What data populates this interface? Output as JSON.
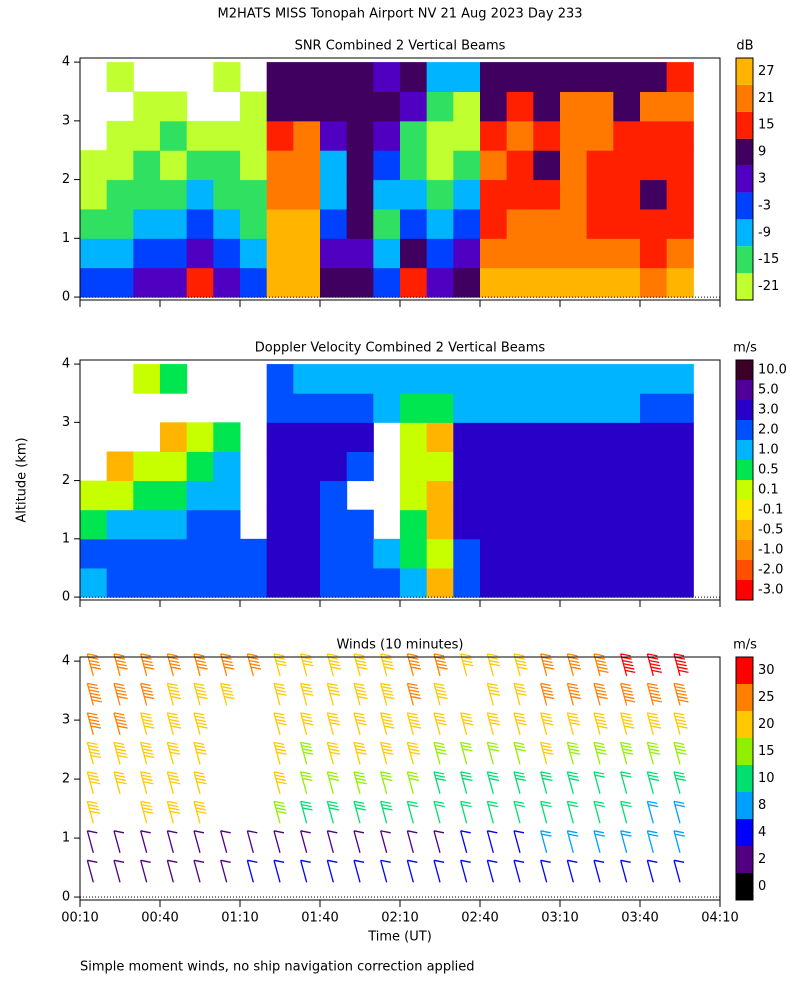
{
  "title": "M2HATS MISS Tonopah Airport NV  21 Aug 2023 Day 233",
  "ylabel": "Altitude (km)",
  "xlabel": "Time (UT)",
  "footnote": "Simple moment winds, no ship navigation correction applied",
  "chart_data": [
    {
      "type": "heatmap",
      "title": "SNR Combined 2 Vertical Beams",
      "unit": "dB",
      "x": [
        15,
        25,
        35,
        45,
        55,
        65,
        75,
        85,
        95,
        105,
        115,
        125,
        135,
        145,
        155,
        165,
        175,
        185,
        195,
        205,
        215,
        225,
        235
      ],
      "y": [
        0.25,
        0.75,
        1.25,
        1.75,
        2.25,
        2.75,
        3.25,
        3.75
      ],
      "values": [
        [
          -3,
          -9,
          -15,
          -21,
          -21,
          null,
          null,
          null
        ],
        [
          -3,
          -9,
          -15,
          -15,
          -21,
          -21,
          null,
          -21
        ],
        [
          3,
          -3,
          -9,
          -15,
          -15,
          -21,
          -21,
          null
        ],
        [
          3,
          -3,
          -9,
          -15,
          -21,
          -15,
          -21,
          null
        ],
        [
          15,
          3,
          -3,
          -9,
          -15,
          -21,
          null,
          null
        ],
        [
          3,
          -3,
          -9,
          -15,
          -15,
          -21,
          null,
          -21
        ],
        [
          -3,
          -9,
          -15,
          -15,
          -21,
          -21,
          -21,
          null
        ],
        [
          27,
          27,
          27,
          21,
          21,
          15,
          9,
          9
        ],
        [
          27,
          27,
          27,
          21,
          21,
          21,
          9,
          9
        ],
        [
          9,
          3,
          -3,
          -9,
          -9,
          3,
          9,
          9
        ],
        [
          9,
          3,
          9,
          9,
          9,
          9,
          9,
          9
        ],
        [
          -3,
          -9,
          -15,
          -9,
          -3,
          3,
          9,
          3
        ],
        [
          15,
          9,
          -3,
          -9,
          -15,
          -15,
          3,
          9
        ],
        [
          3,
          -3,
          -9,
          -15,
          -21,
          -21,
          -15,
          -9
        ],
        [
          9,
          3,
          -3,
          -9,
          -15,
          -21,
          -21,
          -9
        ],
        [
          27,
          21,
          15,
          15,
          21,
          15,
          9,
          9
        ],
        [
          27,
          21,
          21,
          15,
          15,
          21,
          15,
          9
        ],
        [
          27,
          21,
          21,
          15,
          9,
          15,
          9,
          9
        ],
        [
          27,
          21,
          21,
          21,
          21,
          21,
          21,
          9
        ],
        [
          27,
          21,
          15,
          15,
          15,
          21,
          21,
          9
        ],
        [
          27,
          21,
          15,
          15,
          15,
          15,
          9,
          9
        ],
        [
          21,
          15,
          15,
          9,
          15,
          15,
          21,
          9
        ],
        [
          27,
          21,
          15,
          15,
          15,
          15,
          21,
          15
        ]
      ],
      "xlim": [
        10,
        250
      ],
      "xticks": [
        10,
        40,
        70,
        100,
        130,
        160,
        190,
        220,
        250
      ],
      "ylim": [
        -0.05,
        4.07
      ],
      "yticks": [
        0,
        1,
        2,
        3,
        4
      ],
      "colorbar": {
        "ticks": [
          -21,
          -15,
          -9,
          -3,
          3,
          9,
          15,
          21,
          27
        ],
        "colors": [
          "#c0ff30",
          "#30e060",
          "#00b4ff",
          "#0040ff",
          "#5000c0",
          "#400060",
          "#ff2000",
          "#ff7800",
          "#ffb400"
        ]
      }
    },
    {
      "type": "heatmap",
      "title": "Doppler Velocity Combined 2 Vertical Beams",
      "unit": "m/s",
      "x": [
        15,
        25,
        35,
        45,
        55,
        65,
        75,
        85,
        95,
        105,
        115,
        125,
        135,
        145,
        155,
        165,
        175,
        185,
        195,
        205,
        215,
        225,
        235
      ],
      "y": [
        0.25,
        0.75,
        1.25,
        1.75,
        2.25,
        2.75,
        3.25,
        3.75
      ],
      "values": [
        [
          1.5,
          2.5,
          0.7,
          0.3,
          null,
          null,
          null,
          null
        ],
        [
          2.5,
          2.5,
          1.5,
          0.3,
          -0.3,
          null,
          null,
          null
        ],
        [
          2.5,
          2.5,
          1.5,
          0.7,
          0.3,
          null,
          null,
          0.3
        ],
        [
          2.5,
          2.5,
          1.5,
          0.7,
          0.3,
          -0.3,
          null,
          0.7
        ],
        [
          2.5,
          2.5,
          2.5,
          1.5,
          0.7,
          0.3,
          null,
          null
        ],
        [
          2.5,
          2.5,
          2.5,
          1.5,
          1.5,
          0.7,
          null,
          null
        ],
        [
          2.5,
          2.5,
          null,
          null,
          null,
          null,
          null,
          null
        ],
        [
          4,
          4,
          4,
          4,
          4,
          4,
          2.5,
          2.5
        ],
        [
          4,
          4,
          4,
          4,
          4,
          4,
          2.5,
          1.5
        ],
        [
          2.5,
          2.5,
          2.5,
          2.5,
          4,
          4,
          2.5,
          1.5
        ],
        [
          2.5,
          2.5,
          2.5,
          null,
          2.5,
          4,
          2.5,
          1.5
        ],
        [
          2.5,
          1.5,
          null,
          null,
          null,
          null,
          1.5,
          1.5
        ],
        [
          1.5,
          0.7,
          0.7,
          0.3,
          0.3,
          0.3,
          0.7,
          1.5
        ],
        [
          -0.3,
          0.3,
          -0.3,
          -0.3,
          0.3,
          -0.3,
          0.7,
          1.5
        ],
        [
          2.5,
          2.5,
          4,
          4,
          4,
          4,
          1.5,
          1.5
        ],
        [
          4,
          4,
          4,
          4,
          4,
          4,
          1.5,
          1.5
        ],
        [
          4,
          4,
          4,
          4,
          4,
          4,
          1.5,
          1.5
        ],
        [
          4,
          4,
          4,
          4,
          4,
          4,
          1.5,
          1.5
        ],
        [
          4,
          4,
          4,
          4,
          4,
          4,
          1.5,
          1.5
        ],
        [
          4,
          4,
          4,
          4,
          4,
          4,
          1.5,
          1.5
        ],
        [
          4,
          4,
          4,
          4,
          4,
          4,
          1.5,
          1.5
        ],
        [
          4,
          4,
          4,
          4,
          4,
          4,
          2.5,
          1.5
        ],
        [
          4,
          4,
          4,
          4,
          4,
          4,
          2.5,
          1.5
        ]
      ],
      "xlim": [
        10,
        250
      ],
      "xticks": [
        10,
        40,
        70,
        100,
        130,
        160,
        190,
        220,
        250
      ],
      "ylim": [
        -0.05,
        4.07
      ],
      "yticks": [
        0,
        1,
        2,
        3,
        4
      ],
      "colorbar": {
        "ticks": [
          {
            "value": -3,
            "label": "-3.0"
          },
          {
            "value": -2,
            "label": "-2.0"
          },
          {
            "value": -1,
            "label": "-1.0"
          },
          -0.5,
          -0.1,
          0.1,
          0.5,
          {
            "value": 1,
            "label": "1.0"
          },
          {
            "value": 2,
            "label": "2.0"
          },
          {
            "value": 3,
            "label": "3.0"
          },
          {
            "value": 5,
            "label": "5.0"
          },
          {
            "value": 10,
            "label": "10.0"
          }
        ],
        "colors": [
          "#ff0000",
          "#ff5000",
          "#ff8c00",
          "#ffb400",
          "#ffe600",
          "#c8ff00",
          "#00e650",
          "#00b4ff",
          "#0050ff",
          "#2800c8",
          "#500096",
          "#3c0028"
        ]
      }
    },
    {
      "type": "barbs",
      "title": "Winds (10 minutes)",
      "unit": "m/s",
      "x": [
        15,
        25,
        35,
        45,
        55,
        65,
        75,
        85,
        95,
        105,
        115,
        125,
        135,
        145,
        155,
        165,
        175,
        185,
        195,
        205,
        215,
        225,
        235
      ],
      "y": [
        0.25,
        0.75,
        1.25,
        1.75,
        2.25,
        2.75,
        3.25,
        3.75
      ],
      "values": [
        [
          3,
          3,
          20,
          22,
          24,
          27,
          28,
          27
        ],
        [
          3,
          3,
          null,
          21,
          24,
          26,
          27,
          27
        ],
        [
          3,
          3,
          21,
          22,
          23,
          24,
          25,
          26
        ],
        [
          3,
          3,
          20,
          21,
          22,
          23,
          24,
          25
        ],
        [
          3,
          3,
          20,
          21,
          22,
          23,
          24,
          25
        ],
        [
          3,
          3,
          null,
          null,
          null,
          null,
          23,
          25
        ],
        [
          5,
          3,
          null,
          null,
          null,
          null,
          null,
          25
        ],
        [
          5,
          3,
          18,
          20,
          21,
          22,
          22,
          22
        ],
        [
          6,
          3,
          14,
          17,
          19,
          20,
          22,
          22
        ],
        [
          5,
          3,
          13,
          17,
          20,
          21,
          22,
          23
        ],
        [
          5,
          3,
          14,
          18,
          20,
          22,
          23,
          24
        ],
        [
          4,
          3,
          14,
          17,
          20,
          23,
          24,
          24
        ],
        [
          5,
          3,
          12,
          15,
          20,
          24,
          25,
          26
        ],
        [
          4,
          3,
          10,
          14,
          18,
          22,
          24,
          25
        ],
        [
          4,
          4,
          11,
          14,
          17,
          21,
          null,
          21
        ],
        [
          5,
          5,
          11,
          13,
          16,
          20,
          21,
          22
        ],
        [
          5,
          6,
          10,
          14,
          17,
          20,
          22,
          24
        ],
        [
          6,
          8,
          11,
          14,
          20,
          22,
          25,
          26
        ],
        [
          5,
          8,
          10,
          13,
          19,
          22,
          25,
          27
        ],
        [
          5,
          8,
          10,
          12,
          18,
          23,
          26,
          28
        ],
        [
          4,
          8,
          10,
          12,
          18,
          24,
          28,
          30
        ],
        [
          5,
          8,
          9,
          13,
          18,
          24,
          28,
          30
        ],
        [
          5,
          8,
          9,
          13,
          18,
          24,
          28,
          30
        ]
      ],
      "xlim": [
        10,
        250
      ],
      "xticks": [
        {
          "value": 10,
          "label": "00:10"
        },
        {
          "value": 40,
          "label": "00:40"
        },
        {
          "value": 70,
          "label": "01:10"
        },
        {
          "value": 100,
          "label": "01:40"
        },
        {
          "value": 130,
          "label": "02:10"
        },
        {
          "value": 160,
          "label": "02:40"
        },
        {
          "value": 190,
          "label": "03:10"
        },
        {
          "value": 220,
          "label": "03:40"
        },
        {
          "value": 250,
          "label": "04:10"
        }
      ],
      "ylim": [
        -0.05,
        4.07
      ],
      "yticks": [
        0,
        1,
        2,
        3,
        4
      ],
      "colorbar": {
        "ticks": [
          0,
          2,
          4,
          8,
          10,
          15,
          20,
          25,
          30
        ],
        "colors": [
          "#000000",
          "#500080",
          "#0000ff",
          "#00a0ff",
          "#00e070",
          "#90f000",
          "#ffc800",
          "#ff8000",
          "#ff0000"
        ]
      }
    }
  ]
}
